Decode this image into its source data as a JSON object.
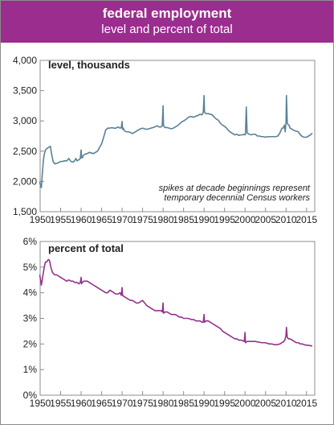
{
  "header": {
    "title": "federal employment",
    "subtitle": "level and percent of total"
  },
  "chart_data": [
    {
      "type": "line",
      "title": "level, thousands",
      "annotation": [
        "spikes at decade beginnings represent",
        "temporary decennial Census workers"
      ],
      "xlim": [
        1950,
        2017
      ],
      "ylim": [
        1500,
        4000
      ],
      "xticks": [
        "1950",
        "1955",
        "1960",
        "1965",
        "1970",
        "1975",
        "1980",
        "1985",
        "1990",
        "1995",
        "2000",
        "2005",
        "2010",
        "2015"
      ],
      "yticks": [
        "1,500",
        "2,000",
        "2,500",
        "3,000",
        "3,500",
        "4,000"
      ],
      "color": "#5a8196",
      "series": [
        {
          "x": [
            1949.9,
            1950.1,
            1950.3,
            1950.5,
            1950.8,
            1951.0,
            1951.3,
            1951.6,
            1952.0,
            1952.5,
            1952.8,
            1953.2,
            1953.6,
            1954.0,
            1954.5,
            1955.0,
            1955.5,
            1956.0,
            1956.5,
            1957.0,
            1957.5,
            1958.0,
            1958.4,
            1958.7,
            1959.0,
            1959.5,
            1959.8,
            1960.0,
            1960.1,
            1960.3,
            1960.5,
            1961.0,
            1961.5,
            1962.0,
            1962.5,
            1963.0,
            1963.5,
            1964.0,
            1964.5,
            1965.0,
            1965.5,
            1966.0,
            1966.5,
            1967.0,
            1967.5,
            1968.0,
            1968.5,
            1969.0,
            1969.5,
            1969.8,
            1970.0,
            1970.1,
            1970.3,
            1970.5,
            1971.0,
            1971.5,
            1972.0,
            1972.5,
            1973.0,
            1973.5,
            1974.0,
            1974.5,
            1975.0,
            1975.5,
            1976.0,
            1976.5,
            1977.0,
            1977.5,
            1978.0,
            1978.5,
            1979.0,
            1979.5,
            1979.8,
            1980.0,
            1980.1,
            1980.3,
            1980.5,
            1981.0,
            1981.5,
            1982.0,
            1982.5,
            1983.0,
            1983.5,
            1984.0,
            1984.5,
            1985.0,
            1985.5,
            1986.0,
            1986.5,
            1987.0,
            1987.5,
            1988.0,
            1988.5,
            1989.0,
            1989.5,
            1989.8,
            1990.0,
            1990.1,
            1990.3,
            1990.5,
            1991.0,
            1991.5,
            1992.0,
            1992.5,
            1993.0,
            1993.5,
            1994.0,
            1994.5,
            1995.0,
            1995.5,
            1996.0,
            1996.5,
            1997.0,
            1997.5,
            1998.0,
            1998.5,
            1999.0,
            1999.5,
            1999.8,
            2000.0,
            2000.1,
            2000.3,
            2000.5,
            2001.0,
            2001.5,
            2002.0,
            2002.5,
            2003.0,
            2003.5,
            2004.0,
            2004.5,
            2005.0,
            2005.5,
            2006.0,
            2006.5,
            2007.0,
            2007.5,
            2008.0,
            2008.3,
            2008.5,
            2009.0,
            2009.3,
            2009.6,
            2009.8,
            2010.0,
            2010.1,
            2010.3,
            2010.5,
            2010.8,
            2011.0,
            2011.5,
            2012.0,
            2012.5,
            2013.0,
            2013.5,
            2014.0,
            2014.5,
            2015.0,
            2015.5,
            2016.0,
            2016.4
          ],
          "y": [
            2000,
            1920,
            1900,
            2100,
            2350,
            2450,
            2520,
            2540,
            2560,
            2580,
            2450,
            2320,
            2290,
            2300,
            2310,
            2330,
            2330,
            2340,
            2340,
            2380,
            2330,
            2320,
            2340,
            2380,
            2340,
            2360,
            2380,
            2520,
            2390,
            2390,
            2430,
            2450,
            2460,
            2480,
            2470,
            2460,
            2480,
            2500,
            2560,
            2620,
            2730,
            2850,
            2880,
            2880,
            2890,
            2880,
            2880,
            2900,
            2880,
            2890,
            2990,
            2860,
            2880,
            2840,
            2820,
            2820,
            2810,
            2790,
            2810,
            2830,
            2850,
            2870,
            2880,
            2870,
            2860,
            2870,
            2880,
            2890,
            2900,
            2920,
            2900,
            2900,
            2920,
            3250,
            2930,
            2900,
            2890,
            2890,
            2880,
            2870,
            2880,
            2900,
            2920,
            2950,
            2980,
            3000,
            3020,
            3050,
            3070,
            3070,
            3060,
            3080,
            3090,
            3110,
            3100,
            3140,
            3420,
            3150,
            3130,
            3120,
            3120,
            3110,
            3100,
            3060,
            3030,
            3010,
            2960,
            2930,
            2910,
            2880,
            2840,
            2810,
            2790,
            2770,
            2780,
            2760,
            2770,
            2770,
            2780,
            2770,
            2780,
            3230,
            2800,
            2780,
            2770,
            2780,
            2780,
            2750,
            2750,
            2740,
            2740,
            2730,
            2740,
            2740,
            2740,
            2740,
            2740,
            2750,
            2780,
            2800,
            2880,
            2880,
            2930,
            2820,
            2990,
            3420,
            2960,
            2940,
            2920,
            2880,
            2860,
            2840,
            2830,
            2820,
            2770,
            2740,
            2730,
            2730,
            2750,
            2770,
            2800
          ]
        }
      ]
    },
    {
      "type": "line",
      "title": "percent  of total",
      "xlim": [
        1950,
        2017
      ],
      "ylim": [
        0,
        6
      ],
      "xticks": [
        "1950",
        "1955",
        "1960",
        "1965",
        "1970",
        "1975",
        "1980",
        "1985",
        "1990",
        "1995",
        "2000",
        "2005",
        "2010",
        "2015"
      ],
      "yticks": [
        "0%",
        "1%",
        "2%",
        "3%",
        "4%",
        "5%",
        "6%"
      ],
      "color": "#93328e",
      "series": [
        {
          "x": [
            1949.9,
            1950.1,
            1950.3,
            1950.6,
            1951.0,
            1951.3,
            1951.6,
            1952.0,
            1952.3,
            1952.6,
            1953.0,
            1953.5,
            1954.0,
            1954.5,
            1955.0,
            1955.5,
            1956.0,
            1956.5,
            1957.0,
            1957.5,
            1958.0,
            1958.5,
            1959.0,
            1959.5,
            1959.8,
            1960.0,
            1960.1,
            1960.3,
            1960.6,
            1961.0,
            1961.5,
            1962.0,
            1962.5,
            1963.0,
            1963.5,
            1964.0,
            1964.5,
            1965.0,
            1965.5,
            1966.0,
            1966.5,
            1967.0,
            1967.5,
            1968.0,
            1968.5,
            1969.0,
            1969.5,
            1969.8,
            1970.0,
            1970.1,
            1970.5,
            1971.0,
            1971.5,
            1972.0,
            1972.5,
            1973.0,
            1973.5,
            1974.0,
            1974.5,
            1975.0,
            1975.5,
            1976.0,
            1976.5,
            1977.0,
            1977.5,
            1978.0,
            1978.5,
            1979.0,
            1979.5,
            1979.8,
            1980.0,
            1980.1,
            1980.5,
            1981.0,
            1981.5,
            1982.0,
            1982.5,
            1983.0,
            1983.5,
            1984.0,
            1984.5,
            1985.0,
            1985.5,
            1986.0,
            1986.5,
            1987.0,
            1987.5,
            1988.0,
            1988.5,
            1989.0,
            1989.5,
            1989.8,
            1990.0,
            1990.1,
            1990.5,
            1991.0,
            1991.5,
            1992.0,
            1992.5,
            1993.0,
            1993.5,
            1994.0,
            1994.5,
            1995.0,
            1995.5,
            1996.0,
            1996.5,
            1997.0,
            1997.5,
            1998.0,
            1998.5,
            1999.0,
            1999.5,
            1999.8,
            2000.0,
            2000.1,
            2000.5,
            2001.0,
            2001.5,
            2002.0,
            2002.5,
            2003.0,
            2003.5,
            2004.0,
            2004.5,
            2005.0,
            2005.5,
            2006.0,
            2006.5,
            2007.0,
            2007.5,
            2008.0,
            2008.5,
            2009.0,
            2009.5,
            2009.8,
            2010.0,
            2010.1,
            2010.3,
            2010.6,
            2011.0,
            2011.5,
            2012.0,
            2012.5,
            2013.0,
            2013.5,
            2014.0,
            2014.5,
            2015.0,
            2015.5,
            2016.0,
            2016.4
          ],
          "y": [
            4.7,
            4.5,
            4.3,
            4.6,
            5.0,
            5.2,
            5.2,
            5.3,
            5.25,
            5.0,
            4.8,
            4.7,
            4.7,
            4.65,
            4.6,
            4.55,
            4.5,
            4.45,
            4.5,
            4.45,
            4.45,
            4.4,
            4.4,
            4.35,
            4.4,
            4.6,
            4.35,
            4.4,
            4.45,
            4.45,
            4.45,
            4.4,
            4.35,
            4.3,
            4.25,
            4.2,
            4.15,
            4.1,
            4.05,
            4.0,
            4.0,
            4.1,
            4.05,
            4.0,
            3.95,
            3.95,
            4.0,
            3.9,
            4.2,
            3.9,
            3.85,
            3.8,
            3.75,
            3.7,
            3.7,
            3.65,
            3.6,
            3.6,
            3.65,
            3.7,
            3.6,
            3.5,
            3.45,
            3.4,
            3.35,
            3.3,
            3.3,
            3.3,
            3.3,
            3.25,
            3.6,
            3.2,
            3.25,
            3.25,
            3.2,
            3.15,
            3.15,
            3.15,
            3.1,
            3.05,
            3.05,
            3.0,
            3.0,
            3.0,
            2.98,
            2.95,
            2.95,
            2.9,
            2.9,
            2.9,
            2.85,
            2.85,
            3.15,
            2.85,
            2.9,
            2.9,
            2.85,
            2.8,
            2.75,
            2.7,
            2.65,
            2.6,
            2.5,
            2.45,
            2.4,
            2.35,
            2.3,
            2.25,
            2.2,
            2.2,
            2.15,
            2.15,
            2.12,
            2.1,
            2.45,
            2.05,
            2.1,
            2.1,
            2.1,
            2.1,
            2.1,
            2.08,
            2.07,
            2.05,
            2.05,
            2.05,
            2.02,
            2.0,
            2.0,
            1.98,
            1.97,
            1.98,
            2.0,
            2.05,
            2.1,
            2.2,
            2.35,
            2.65,
            2.25,
            2.2,
            2.2,
            2.15,
            2.1,
            2.05,
            2.05,
            2.0,
            2.0,
            1.97,
            1.95,
            1.95,
            1.93,
            1.93
          ]
        }
      ]
    }
  ]
}
